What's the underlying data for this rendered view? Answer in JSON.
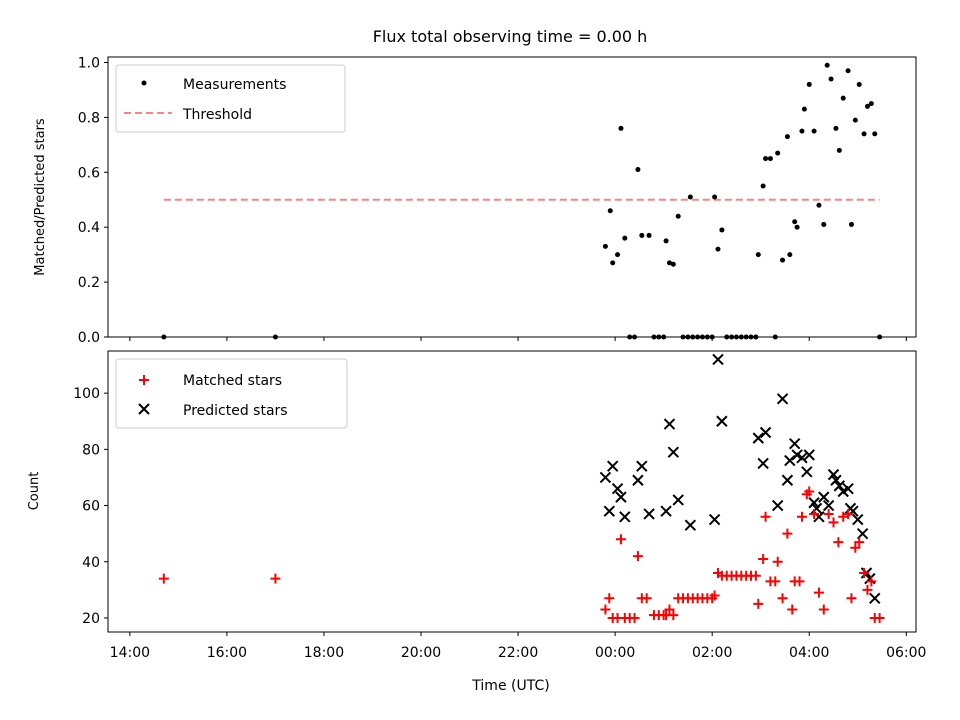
{
  "chart_data": [
    {
      "type": "scatter",
      "title": "Flux total observing time = 0.00 h",
      "ylabel": "Matched/Predicted stars",
      "xlabel": "",
      "xlim": [
        -10.45,
        6.2
      ],
      "ylim": [
        0,
        1.02
      ],
      "x_unit": "hours relative to 00:00 UTC",
      "yticks": [
        0,
        0.2,
        0.4,
        0.6,
        0.8,
        1.0
      ],
      "ytick_labels": [
        "0.0",
        "0.2",
        "0.4",
        "0.6",
        "0.8",
        "1.0"
      ],
      "legend": [
        {
          "label": "Measurements",
          "marker": "dot",
          "color": "#000000"
        },
        {
          "label": "Threshold",
          "marker": "dashed-line",
          "color": "#ff8080"
        }
      ],
      "threshold": {
        "value": 0.5,
        "x_range": [
          -9.3,
          5.45
        ]
      },
      "series": [
        {
          "name": "Measurements",
          "color": "#000000",
          "points": [
            [
              -9.3,
              0.0
            ],
            [
              -7.0,
              0.0
            ],
            [
              -0.2,
              0.33
            ],
            [
              -0.1,
              0.46
            ],
            [
              -0.05,
              0.27
            ],
            [
              0.05,
              0.3
            ],
            [
              0.12,
              0.76
            ],
            [
              0.2,
              0.36
            ],
            [
              0.3,
              0.0
            ],
            [
              0.4,
              0.0
            ],
            [
              0.47,
              0.61
            ],
            [
              0.55,
              0.37
            ],
            [
              0.7,
              0.37
            ],
            [
              0.8,
              0.0
            ],
            [
              0.9,
              0.0
            ],
            [
              1.0,
              0.0
            ],
            [
              1.05,
              0.35
            ],
            [
              1.12,
              0.27
            ],
            [
              1.2,
              0.265
            ],
            [
              1.3,
              0.44
            ],
            [
              1.4,
              0.0
            ],
            [
              1.5,
              0.0
            ],
            [
              1.55,
              0.51
            ],
            [
              1.6,
              0.0
            ],
            [
              1.7,
              0.0
            ],
            [
              1.8,
              0.0
            ],
            [
              1.9,
              0.0
            ],
            [
              2.0,
              0.0
            ],
            [
              2.05,
              0.51
            ],
            [
              2.12,
              0.32
            ],
            [
              2.2,
              0.39
            ],
            [
              2.3,
              0.0
            ],
            [
              2.4,
              0.0
            ],
            [
              2.5,
              0.0
            ],
            [
              2.6,
              0.0
            ],
            [
              2.7,
              0.0
            ],
            [
              2.8,
              0.0
            ],
            [
              2.9,
              0.0
            ],
            [
              2.95,
              0.3
            ],
            [
              3.05,
              0.55
            ],
            [
              3.1,
              0.65
            ],
            [
              3.2,
              0.65
            ],
            [
              3.3,
              0.0
            ],
            [
              3.35,
              0.67
            ],
            [
              3.45,
              0.28
            ],
            [
              3.55,
              0.73
            ],
            [
              3.6,
              0.3
            ],
            [
              3.7,
              0.42
            ],
            [
              3.75,
              0.4
            ],
            [
              3.85,
              0.75
            ],
            [
              3.9,
              0.83
            ],
            [
              4.0,
              0.92
            ],
            [
              4.1,
              0.75
            ],
            [
              4.2,
              0.48
            ],
            [
              4.3,
              0.41
            ],
            [
              4.37,
              0.99
            ],
            [
              4.45,
              0.94
            ],
            [
              4.55,
              0.76
            ],
            [
              4.62,
              0.68
            ],
            [
              4.7,
              0.87
            ],
            [
              4.8,
              0.97
            ],
            [
              4.87,
              0.41
            ],
            [
              4.95,
              0.79
            ],
            [
              5.03,
              0.92
            ],
            [
              5.13,
              0.74
            ],
            [
              5.2,
              0.84
            ],
            [
              5.28,
              0.85
            ],
            [
              5.35,
              0.74
            ],
            [
              5.45,
              0.0
            ]
          ]
        }
      ]
    },
    {
      "type": "scatter",
      "title": "",
      "xlabel": "Time (UTC)",
      "ylabel": "Count",
      "xlim": [
        -10.45,
        6.2
      ],
      "ylim": [
        15,
        115
      ],
      "x_unit": "hours relative to 00:00 UTC",
      "xticks": [
        -10,
        -8,
        -6,
        -4,
        -2,
        0,
        2,
        4,
        6
      ],
      "xtick_labels": [
        "14:00",
        "16:00",
        "18:00",
        "20:00",
        "22:00",
        "00:00",
        "02:00",
        "04:00",
        "06:00"
      ],
      "yticks": [
        20,
        40,
        60,
        80,
        100
      ],
      "ytick_labels": [
        "20",
        "40",
        "60",
        "80",
        "100"
      ],
      "legend": [
        {
          "label": "Matched stars",
          "marker": "plus",
          "color": "#ff0000"
        },
        {
          "label": "Predicted stars",
          "marker": "x",
          "color": "#000000"
        }
      ],
      "series": [
        {
          "name": "Matched stars",
          "color": "#ff0000",
          "points": [
            [
              -9.3,
              34
            ],
            [
              -7.0,
              34
            ],
            [
              -0.2,
              23
            ],
            [
              -0.12,
              27
            ],
            [
              -0.05,
              20
            ],
            [
              0.05,
              20
            ],
            [
              0.12,
              48
            ],
            [
              0.2,
              20
            ],
            [
              0.3,
              20
            ],
            [
              0.4,
              20
            ],
            [
              0.47,
              42
            ],
            [
              0.55,
              27
            ],
            [
              0.65,
              27
            ],
            [
              0.8,
              21
            ],
            [
              0.9,
              21
            ],
            [
              1.0,
              21
            ],
            [
              1.05,
              21
            ],
            [
              1.12,
              23
            ],
            [
              1.2,
              21
            ],
            [
              1.3,
              27
            ],
            [
              1.4,
              27
            ],
            [
              1.5,
              27
            ],
            [
              1.6,
              27
            ],
            [
              1.7,
              27
            ],
            [
              1.8,
              27
            ],
            [
              1.9,
              27
            ],
            [
              2.0,
              27
            ],
            [
              2.05,
              28
            ],
            [
              2.12,
              36
            ],
            [
              2.2,
              35
            ],
            [
              2.3,
              35
            ],
            [
              2.4,
              35
            ],
            [
              2.5,
              35
            ],
            [
              2.6,
              35
            ],
            [
              2.7,
              35
            ],
            [
              2.8,
              35
            ],
            [
              2.9,
              35
            ],
            [
              2.95,
              25
            ],
            [
              3.05,
              41
            ],
            [
              3.1,
              56
            ],
            [
              3.2,
              33
            ],
            [
              3.3,
              33
            ],
            [
              3.35,
              40
            ],
            [
              3.45,
              27
            ],
            [
              3.55,
              50
            ],
            [
              3.65,
              23
            ],
            [
              3.7,
              33
            ],
            [
              3.8,
              33
            ],
            [
              3.85,
              56
            ],
            [
              3.95,
              64
            ],
            [
              4.0,
              65
            ],
            [
              4.1,
              57
            ],
            [
              4.2,
              29
            ],
            [
              4.3,
              23
            ],
            [
              4.4,
              57
            ],
            [
              4.5,
              54
            ],
            [
              4.6,
              47
            ],
            [
              4.7,
              56
            ],
            [
              4.8,
              57
            ],
            [
              4.87,
              27
            ],
            [
              4.95,
              45
            ],
            [
              5.03,
              47
            ],
            [
              5.13,
              36
            ],
            [
              5.2,
              30
            ],
            [
              5.28,
              33
            ],
            [
              5.35,
              20
            ],
            [
              5.45,
              20
            ]
          ]
        },
        {
          "name": "Predicted stars",
          "color": "#000000",
          "points": [
            [
              -0.2,
              70
            ],
            [
              -0.12,
              58
            ],
            [
              -0.05,
              74
            ],
            [
              0.05,
              66
            ],
            [
              0.12,
              63
            ],
            [
              0.2,
              56
            ],
            [
              0.47,
              69
            ],
            [
              0.55,
              74
            ],
            [
              0.7,
              57
            ],
            [
              1.05,
              58
            ],
            [
              1.12,
              89
            ],
            [
              1.2,
              79
            ],
            [
              1.3,
              62
            ],
            [
              1.55,
              53
            ],
            [
              2.05,
              55
            ],
            [
              2.12,
              112
            ],
            [
              2.2,
              90
            ],
            [
              2.95,
              84
            ],
            [
              3.05,
              75
            ],
            [
              3.1,
              86
            ],
            [
              3.35,
              60
            ],
            [
              3.45,
              98
            ],
            [
              3.55,
              69
            ],
            [
              3.6,
              76
            ],
            [
              3.7,
              82
            ],
            [
              3.75,
              78
            ],
            [
              3.85,
              77
            ],
            [
              3.95,
              72
            ],
            [
              4.0,
              78
            ],
            [
              4.1,
              61
            ],
            [
              4.15,
              59
            ],
            [
              4.2,
              56
            ],
            [
              4.3,
              63
            ],
            [
              4.4,
              60
            ],
            [
              4.5,
              71
            ],
            [
              4.55,
              69
            ],
            [
              4.62,
              67
            ],
            [
              4.7,
              65
            ],
            [
              4.8,
              66
            ],
            [
              4.85,
              59
            ],
            [
              4.9,
              58
            ],
            [
              5.0,
              55
            ],
            [
              5.1,
              50
            ],
            [
              5.18,
              36
            ],
            [
              5.25,
              34
            ],
            [
              5.35,
              27
            ]
          ]
        }
      ]
    }
  ]
}
